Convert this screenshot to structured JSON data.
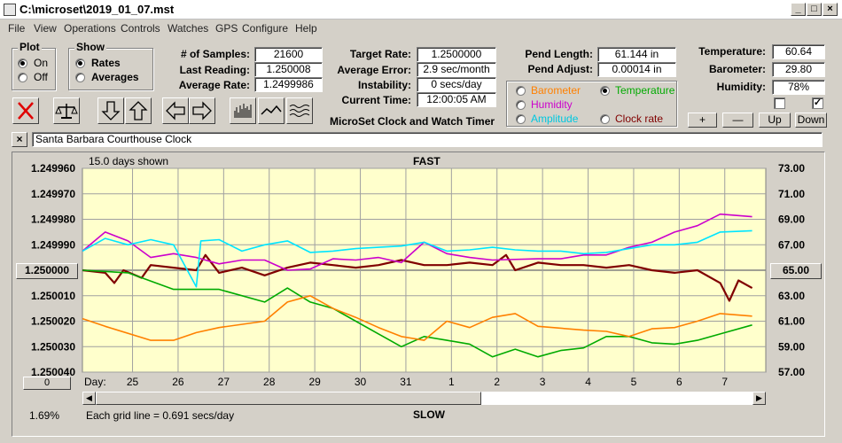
{
  "window": {
    "title": "C:\\microset\\2019_01_07.mst"
  },
  "menu": [
    "File",
    "View",
    "Operations",
    "Controls",
    "Watches",
    "GPS",
    "Configure",
    "Help"
  ],
  "plot_group": {
    "title": "Plot",
    "on": "On",
    "off": "Off",
    "selected": "On"
  },
  "show_group": {
    "title": "Show",
    "rates": "Rates",
    "averages": "Averages",
    "selected": "Rates"
  },
  "stats": {
    "samples_label": "# of Samples:",
    "samples": "21600",
    "last_reading_label": "Last Reading:",
    "last_reading": "1.250008",
    "average_rate_label": "Average Rate:",
    "average_rate": "1.2499986",
    "target_rate_label": "Target Rate:",
    "target_rate": "1.2500000",
    "average_error_label": "Average Error:",
    "average_error": "2.9 sec/month",
    "instability_label": "Instability:",
    "instability": "0 secs/day",
    "current_time_label": "Current Time:",
    "current_time": "12:00:05 AM",
    "app_name": "MicroSet Clock and Watch Timer",
    "pend_length_label": "Pend Length:",
    "pend_length": "61.144 in",
    "pend_adjust_label": "Pend Adjust:",
    "pend_adjust": "0.00014 in",
    "temperature_label": "Temperature:",
    "temperature": "60.64",
    "barometer_label": "Barometer:",
    "barometer": "29.80",
    "humidity_label": "Humidity:",
    "humidity": "78%"
  },
  "sensor_select": {
    "barometer": "Barometer",
    "temperature": "Temperature",
    "humidity": "Humidity",
    "amplitude": "Amplitude",
    "clock_rate": "Clock rate",
    "selected": "Temperature"
  },
  "scale_buttons": {
    "plus": "+",
    "minus": "—",
    "up": "Up",
    "down": "Down"
  },
  "description": "Santa Barbara Courthouse Clock",
  "close_desc": "×",
  "chart_header": {
    "days_shown": "15.0 days shown",
    "fast": "FAST",
    "slow": "SLOW"
  },
  "footer": {
    "percent": "1.69%",
    "grid_note": "Each grid line = 0.691 secs/day",
    "day_label": "Day:",
    "left_btn": "0"
  },
  "colors": {
    "plot_bg": "#ffffcc",
    "rate": "#800000",
    "temperature": "#00aa00",
    "barometer": "#ff8000",
    "humidity": "#cc00cc",
    "amplitude": "#00e5ff",
    "grid": "#a0a0a0"
  },
  "chart_data": {
    "type": "line",
    "title": "",
    "x_label": "Day",
    "x_range": [
      0,
      15
    ],
    "x_ticks": [
      {
        "x": 1.1,
        "label": "25"
      },
      {
        "x": 2.1,
        "label": "26"
      },
      {
        "x": 3.1,
        "label": "27"
      },
      {
        "x": 4.1,
        "label": "28"
      },
      {
        "x": 5.1,
        "label": "29"
      },
      {
        "x": 6.1,
        "label": "30"
      },
      {
        "x": 7.1,
        "label": "31"
      },
      {
        "x": 8.1,
        "label": "1"
      },
      {
        "x": 9.1,
        "label": "2"
      },
      {
        "x": 10.1,
        "label": "3"
      },
      {
        "x": 11.1,
        "label": "4"
      },
      {
        "x": 12.1,
        "label": "5"
      },
      {
        "x": 13.1,
        "label": "6"
      },
      {
        "x": 14.1,
        "label": "7"
      }
    ],
    "y_left": {
      "label": "Rate",
      "ticks": [
        "1.249960",
        "1.249970",
        "1.249980",
        "1.249990",
        "1.250000",
        "1.250010",
        "1.250020",
        "1.250030",
        "1.250040"
      ],
      "range": [
        1.24996,
        1.25004
      ]
    },
    "y_right": {
      "label": "Temperature",
      "ticks": [
        "73.00",
        "71.00",
        "69.00",
        "67.00",
        "65.00",
        "63.00",
        "61.00",
        "59.00",
        "57.00"
      ],
      "range": [
        57,
        73
      ]
    },
    "series": [
      {
        "name": "Rate",
        "color": "#800000",
        "axis": "left",
        "points": [
          [
            0,
            1.25
          ],
          [
            0.5,
            1.250001
          ],
          [
            0.7,
            1.250005
          ],
          [
            0.9,
            1.25
          ],
          [
            1.3,
            1.250003
          ],
          [
            1.5,
            1.249998
          ],
          [
            2,
            1.249999
          ],
          [
            2.5,
            1.25
          ],
          [
            2.7,
            1.249994
          ],
          [
            3,
            1.250001
          ],
          [
            3.5,
            1.249999
          ],
          [
            4,
            1.250002
          ],
          [
            4.5,
            1.249999
          ],
          [
            5,
            1.249997
          ],
          [
            5.5,
            1.249998
          ],
          [
            6,
            1.249999
          ],
          [
            6.5,
            1.249998
          ],
          [
            7,
            1.249996
          ],
          [
            7.5,
            1.249998
          ],
          [
            8,
            1.249998
          ],
          [
            8.5,
            1.249997
          ],
          [
            9,
            1.249998
          ],
          [
            9.3,
            1.249994
          ],
          [
            9.5,
            1.25
          ],
          [
            10,
            1.249997
          ],
          [
            10.5,
            1.249998
          ],
          [
            11,
            1.249998
          ],
          [
            11.5,
            1.249999
          ],
          [
            12,
            1.249998
          ],
          [
            12.5,
            1.25
          ],
          [
            13,
            1.250001
          ],
          [
            13.5,
            1.25
          ],
          [
            14,
            1.250005
          ],
          [
            14.2,
            1.250012
          ],
          [
            14.4,
            1.250004
          ],
          [
            14.7,
            1.250007
          ]
        ]
      },
      {
        "name": "Temperature",
        "color": "#00aa00",
        "axis": "right",
        "points": [
          [
            0,
            65.0
          ],
          [
            1,
            64.8
          ],
          [
            2,
            63.5
          ],
          [
            3,
            63.5
          ],
          [
            4,
            62.5
          ],
          [
            4.5,
            63.6
          ],
          [
            5,
            62.5
          ],
          [
            5.5,
            62.0
          ],
          [
            6,
            61.0
          ],
          [
            6.5,
            60.0
          ],
          [
            7,
            59.0
          ],
          [
            7.5,
            59.8
          ],
          [
            8,
            59.5
          ],
          [
            8.5,
            59.2
          ],
          [
            9,
            58.2
          ],
          [
            9.5,
            58.8
          ],
          [
            10,
            58.2
          ],
          [
            10.5,
            58.7
          ],
          [
            11,
            58.9
          ],
          [
            11.5,
            59.8
          ],
          [
            12,
            59.8
          ],
          [
            12.5,
            59.3
          ],
          [
            13,
            59.2
          ],
          [
            13.5,
            59.5
          ],
          [
            14,
            60.0
          ],
          [
            14.7,
            60.7
          ]
        ]
      },
      {
        "name": "Barometer",
        "color": "#ff8000",
        "axis": "right",
        "points": [
          [
            0,
            61.2
          ],
          [
            0.5,
            60.6
          ],
          [
            1.5,
            59.5
          ],
          [
            2,
            59.5
          ],
          [
            2.5,
            60.1
          ],
          [
            3,
            60.5
          ],
          [
            4,
            61.0
          ],
          [
            4.5,
            62.5
          ],
          [
            5,
            63.0
          ],
          [
            5.5,
            62.0
          ],
          [
            6,
            61.3
          ],
          [
            6.5,
            60.5
          ],
          [
            7,
            59.8
          ],
          [
            7.5,
            59.5
          ],
          [
            8,
            61.0
          ],
          [
            8.5,
            60.5
          ],
          [
            9,
            61.3
          ],
          [
            9.5,
            61.6
          ],
          [
            10,
            60.6
          ],
          [
            11,
            60.3
          ],
          [
            11.5,
            60.2
          ],
          [
            12,
            59.8
          ],
          [
            12.5,
            60.4
          ],
          [
            13,
            60.5
          ],
          [
            13.5,
            61.0
          ],
          [
            14,
            61.6
          ],
          [
            14.7,
            61.4
          ]
        ]
      },
      {
        "name": "Humidity",
        "color": "#cc00cc",
        "axis": "right",
        "points": [
          [
            0,
            66.5
          ],
          [
            0.5,
            68.0
          ],
          [
            1,
            67.3
          ],
          [
            1.5,
            66.0
          ],
          [
            2,
            66.3
          ],
          [
            2.5,
            66.0
          ],
          [
            3,
            65.5
          ],
          [
            3.5,
            65.8
          ],
          [
            4,
            65.8
          ],
          [
            4.5,
            65.0
          ],
          [
            5,
            65.1
          ],
          [
            5.5,
            65.9
          ],
          [
            6,
            65.8
          ],
          [
            6.5,
            66.0
          ],
          [
            7,
            65.6
          ],
          [
            7.5,
            67.2
          ],
          [
            8,
            66.3
          ],
          [
            8.5,
            66.0
          ],
          [
            9,
            65.8
          ],
          [
            10,
            65.9
          ],
          [
            10.5,
            65.9
          ],
          [
            11,
            66.2
          ],
          [
            11.5,
            66.2
          ],
          [
            12,
            66.8
          ],
          [
            12.5,
            67.2
          ],
          [
            13,
            68.0
          ],
          [
            13.5,
            68.5
          ],
          [
            14,
            69.4
          ],
          [
            14.7,
            69.2
          ]
        ]
      },
      {
        "name": "Amplitude",
        "color": "#00e5ff",
        "axis": "right",
        "points": [
          [
            0,
            66.5
          ],
          [
            0.5,
            67.5
          ],
          [
            1,
            67.0
          ],
          [
            1.5,
            67.4
          ],
          [
            2,
            67.0
          ],
          [
            2.5,
            63.7
          ],
          [
            2.6,
            67.3
          ],
          [
            3,
            67.4
          ],
          [
            3.5,
            66.5
          ],
          [
            4,
            67.0
          ],
          [
            4.5,
            67.3
          ],
          [
            5,
            66.4
          ],
          [
            5.5,
            66.5
          ],
          [
            6,
            66.7
          ],
          [
            6.5,
            66.8
          ],
          [
            7,
            66.9
          ],
          [
            7.5,
            67.2
          ],
          [
            8,
            66.5
          ],
          [
            8.5,
            66.6
          ],
          [
            9,
            66.8
          ],
          [
            9.5,
            66.6
          ],
          [
            10,
            66.5
          ],
          [
            10.5,
            66.5
          ],
          [
            11,
            66.3
          ],
          [
            11.5,
            66.4
          ],
          [
            12,
            66.7
          ],
          [
            12.5,
            67.0
          ],
          [
            13,
            67.0
          ],
          [
            13.5,
            67.2
          ],
          [
            14,
            68.0
          ],
          [
            14.7,
            68.1
          ]
        ]
      }
    ]
  }
}
